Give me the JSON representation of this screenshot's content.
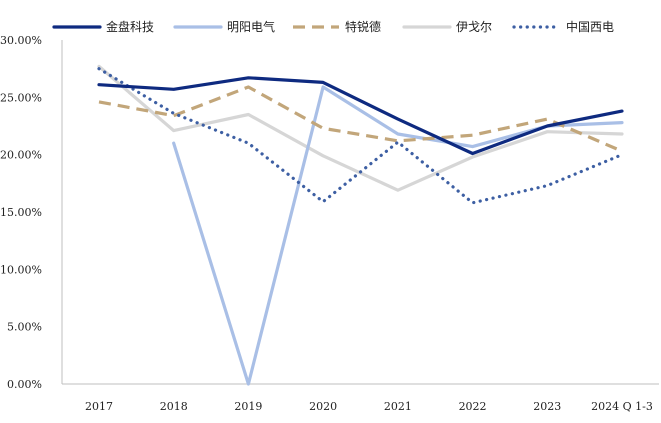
{
  "chart_data": {
    "type": "line",
    "title": "",
    "xlabel": "",
    "ylabel": "",
    "categories": [
      "2017",
      "2018",
      "2019",
      "2020",
      "2021",
      "2022",
      "2023",
      "2024 Q 1-3"
    ],
    "ylim": [
      0,
      30
    ],
    "y_ticks": [
      0,
      5,
      10,
      15,
      20,
      25,
      30
    ],
    "y_tick_labels": [
      "0.00%",
      "5.00%",
      "10.00%",
      "15.00%",
      "20.00%",
      "25.00%",
      "30.00%"
    ],
    "grid": false,
    "legend_position": "top",
    "series": [
      {
        "name": "金盘科技",
        "color": "#0e2a80",
        "style": "solid-bold",
        "values": [
          26.1,
          25.7,
          26.7,
          26.3,
          23.1,
          20.1,
          22.5,
          23.8
        ]
      },
      {
        "name": "明阳电气",
        "color": "#a9bfe6",
        "style": "solid",
        "values": [
          null,
          21.0,
          0.0,
          25.9,
          21.8,
          20.7,
          22.5,
          22.8
        ]
      },
      {
        "name": "特锐德",
        "color": "#c2a67a",
        "style": "dashed",
        "values": [
          24.6,
          23.4,
          25.9,
          22.3,
          21.2,
          21.7,
          23.1,
          20.3
        ]
      },
      {
        "name": "伊戈尔",
        "color": "#d6d6d6",
        "style": "solid",
        "values": [
          27.7,
          22.1,
          23.5,
          19.9,
          16.9,
          19.8,
          22.0,
          21.8
        ]
      },
      {
        "name": "中国西电",
        "color": "#3d5fa3",
        "style": "dotted",
        "values": [
          27.5,
          23.6,
          21.0,
          15.9,
          21.1,
          15.8,
          17.3,
          20.0
        ]
      }
    ]
  }
}
